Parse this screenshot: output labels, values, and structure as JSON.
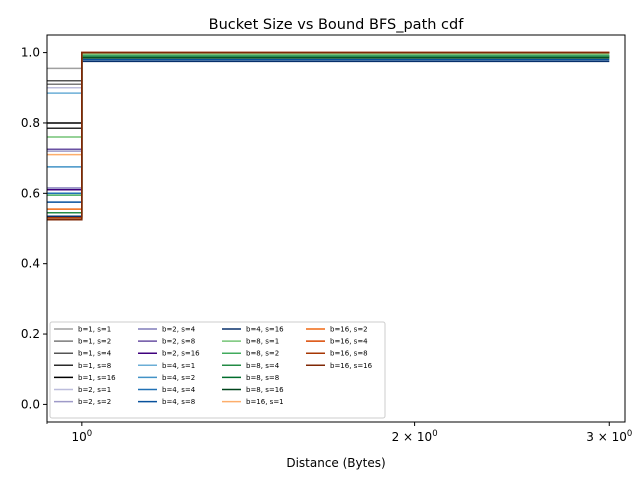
{
  "chart_data": {
    "type": "line",
    "title": "Bucket Size vs Bound BFS_path cdf",
    "xlabel": "Distance (Bytes)",
    "ylabel": "",
    "xscale": "log",
    "xlim": [
      0.93,
      3.1
    ],
    "ylim": [
      -0.05,
      1.05
    ],
    "x_ticks": [
      {
        "value": 1,
        "label": "10",
        "sup": "0",
        "prefix": ""
      },
      {
        "value": 2,
        "label": "10",
        "sup": "0",
        "prefix": "2 × "
      },
      {
        "value": 3,
        "label": "10",
        "sup": "0",
        "prefix": "3 × "
      }
    ],
    "y_ticks": [
      {
        "value": 0.0,
        "label": "0.0"
      },
      {
        "value": 0.2,
        "label": "0.2"
      },
      {
        "value": 0.4,
        "label": "0.4"
      },
      {
        "value": 0.6,
        "label": "0.6"
      },
      {
        "value": 0.8,
        "label": "0.8"
      },
      {
        "value": 1.0,
        "label": "1.0"
      }
    ],
    "grid": false,
    "legend_placement": "lower-left",
    "legend_columns": 4,
    "series": [
      {
        "name": "b=1, s=1",
        "color": "#a0a0a0",
        "x": [
          0.93,
          1,
          1,
          3
        ],
        "y": [
          0.955,
          0.955,
          1.0,
          1.0
        ]
      },
      {
        "name": "b=1, s=2",
        "color": "#7a7a7a",
        "x": [
          0.93,
          1,
          1,
          3
        ],
        "y": [
          0.91,
          0.91,
          1.0,
          1.0
        ]
      },
      {
        "name": "b=1, s=4",
        "color": "#555555",
        "x": [
          0.93,
          1,
          1,
          3
        ],
        "y": [
          0.92,
          0.92,
          1.0,
          1.0
        ]
      },
      {
        "name": "b=1, s=8",
        "color": "#2a2a2a",
        "x": [
          0.93,
          1,
          1,
          3
        ],
        "y": [
          0.785,
          0.785,
          1.0,
          1.0
        ]
      },
      {
        "name": "b=1, s=16",
        "color": "#000000",
        "x": [
          0.93,
          1,
          1,
          3
        ],
        "y": [
          0.8,
          0.8,
          1.0,
          1.0
        ]
      },
      {
        "name": "b=2, s=1",
        "color": "#bcbddc",
        "x": [
          0.93,
          1,
          1,
          3
        ],
        "y": [
          0.9,
          0.9,
          1.0,
          1.0
        ]
      },
      {
        "name": "b=2, s=2",
        "color": "#9e9ac8",
        "x": [
          0.93,
          1,
          1,
          3
        ],
        "y": [
          0.72,
          0.72,
          1.0,
          1.0
        ]
      },
      {
        "name": "b=2, s=4",
        "color": "#807dba",
        "x": [
          0.93,
          1,
          1,
          3
        ],
        "y": [
          0.615,
          0.615,
          1.0,
          1.0
        ]
      },
      {
        "name": "b=2, s=8",
        "color": "#6a51a3",
        "x": [
          0.93,
          1,
          1,
          3
        ],
        "y": [
          0.725,
          0.725,
          1.0,
          1.0
        ]
      },
      {
        "name": "b=2, s=16",
        "color": "#3f007d",
        "x": [
          0.93,
          1,
          1,
          3
        ],
        "y": [
          0.61,
          0.61,
          1.0,
          1.0
        ]
      },
      {
        "name": "b=4, s=1",
        "color": "#6baed6",
        "x": [
          0.93,
          1,
          1,
          3
        ],
        "y": [
          0.885,
          0.885,
          0.99,
          0.99
        ]
      },
      {
        "name": "b=4, s=2",
        "color": "#4292c6",
        "x": [
          0.93,
          1,
          1,
          3
        ],
        "y": [
          0.675,
          0.675,
          0.99,
          0.99
        ]
      },
      {
        "name": "b=4, s=4",
        "color": "#2171b5",
        "x": [
          0.93,
          1,
          1,
          3
        ],
        "y": [
          0.6,
          0.6,
          0.99,
          0.99
        ]
      },
      {
        "name": "b=4, s=8",
        "color": "#08519c",
        "x": [
          0.93,
          1,
          1,
          3
        ],
        "y": [
          0.575,
          0.575,
          0.98,
          0.98
        ]
      },
      {
        "name": "b=4, s=16",
        "color": "#08306b",
        "x": [
          0.93,
          1,
          1,
          3
        ],
        "y": [
          0.535,
          0.535,
          0.975,
          0.975
        ]
      },
      {
        "name": "b=8, s=1",
        "color": "#74c476",
        "x": [
          0.93,
          1,
          1,
          3
        ],
        "y": [
          0.76,
          0.76,
          0.995,
          0.995
        ]
      },
      {
        "name": "b=8, s=2",
        "color": "#41ab5d",
        "x": [
          0.93,
          1,
          1,
          3
        ],
        "y": [
          0.595,
          0.595,
          0.99,
          0.99
        ]
      },
      {
        "name": "b=8, s=4",
        "color": "#238b45",
        "x": [
          0.93,
          1,
          1,
          3
        ],
        "y": [
          0.545,
          0.545,
          0.99,
          0.99
        ]
      },
      {
        "name": "b=8, s=8",
        "color": "#006d2c",
        "x": [
          0.93,
          1,
          1,
          3
        ],
        "y": [
          0.53,
          0.53,
          0.985,
          0.985
        ]
      },
      {
        "name": "b=8, s=16",
        "color": "#00441b",
        "x": [
          0.93,
          1,
          1,
          3
        ],
        "y": [
          0.525,
          0.525,
          0.985,
          0.985
        ]
      },
      {
        "name": "b=16, s=1",
        "color": "#fdae6b",
        "x": [
          0.93,
          1,
          1,
          3
        ],
        "y": [
          0.71,
          0.71,
          1.0,
          1.0
        ]
      },
      {
        "name": "b=16, s=2",
        "color": "#f16913",
        "x": [
          0.93,
          1,
          1,
          3
        ],
        "y": [
          0.555,
          0.555,
          1.0,
          1.0
        ]
      },
      {
        "name": "b=16, s=4",
        "color": "#d94801",
        "x": [
          0.93,
          1,
          1,
          3
        ],
        "y": [
          0.53,
          0.53,
          1.0,
          1.0
        ]
      },
      {
        "name": "b=16, s=8",
        "color": "#a63603",
        "x": [
          0.93,
          1,
          1,
          3
        ],
        "y": [
          0.53,
          0.53,
          1.0,
          1.0
        ]
      },
      {
        "name": "b=16, s=16",
        "color": "#7f2704",
        "x": [
          0.93,
          1,
          1,
          3
        ],
        "y": [
          0.525,
          0.525,
          1.0,
          1.0
        ]
      }
    ]
  }
}
